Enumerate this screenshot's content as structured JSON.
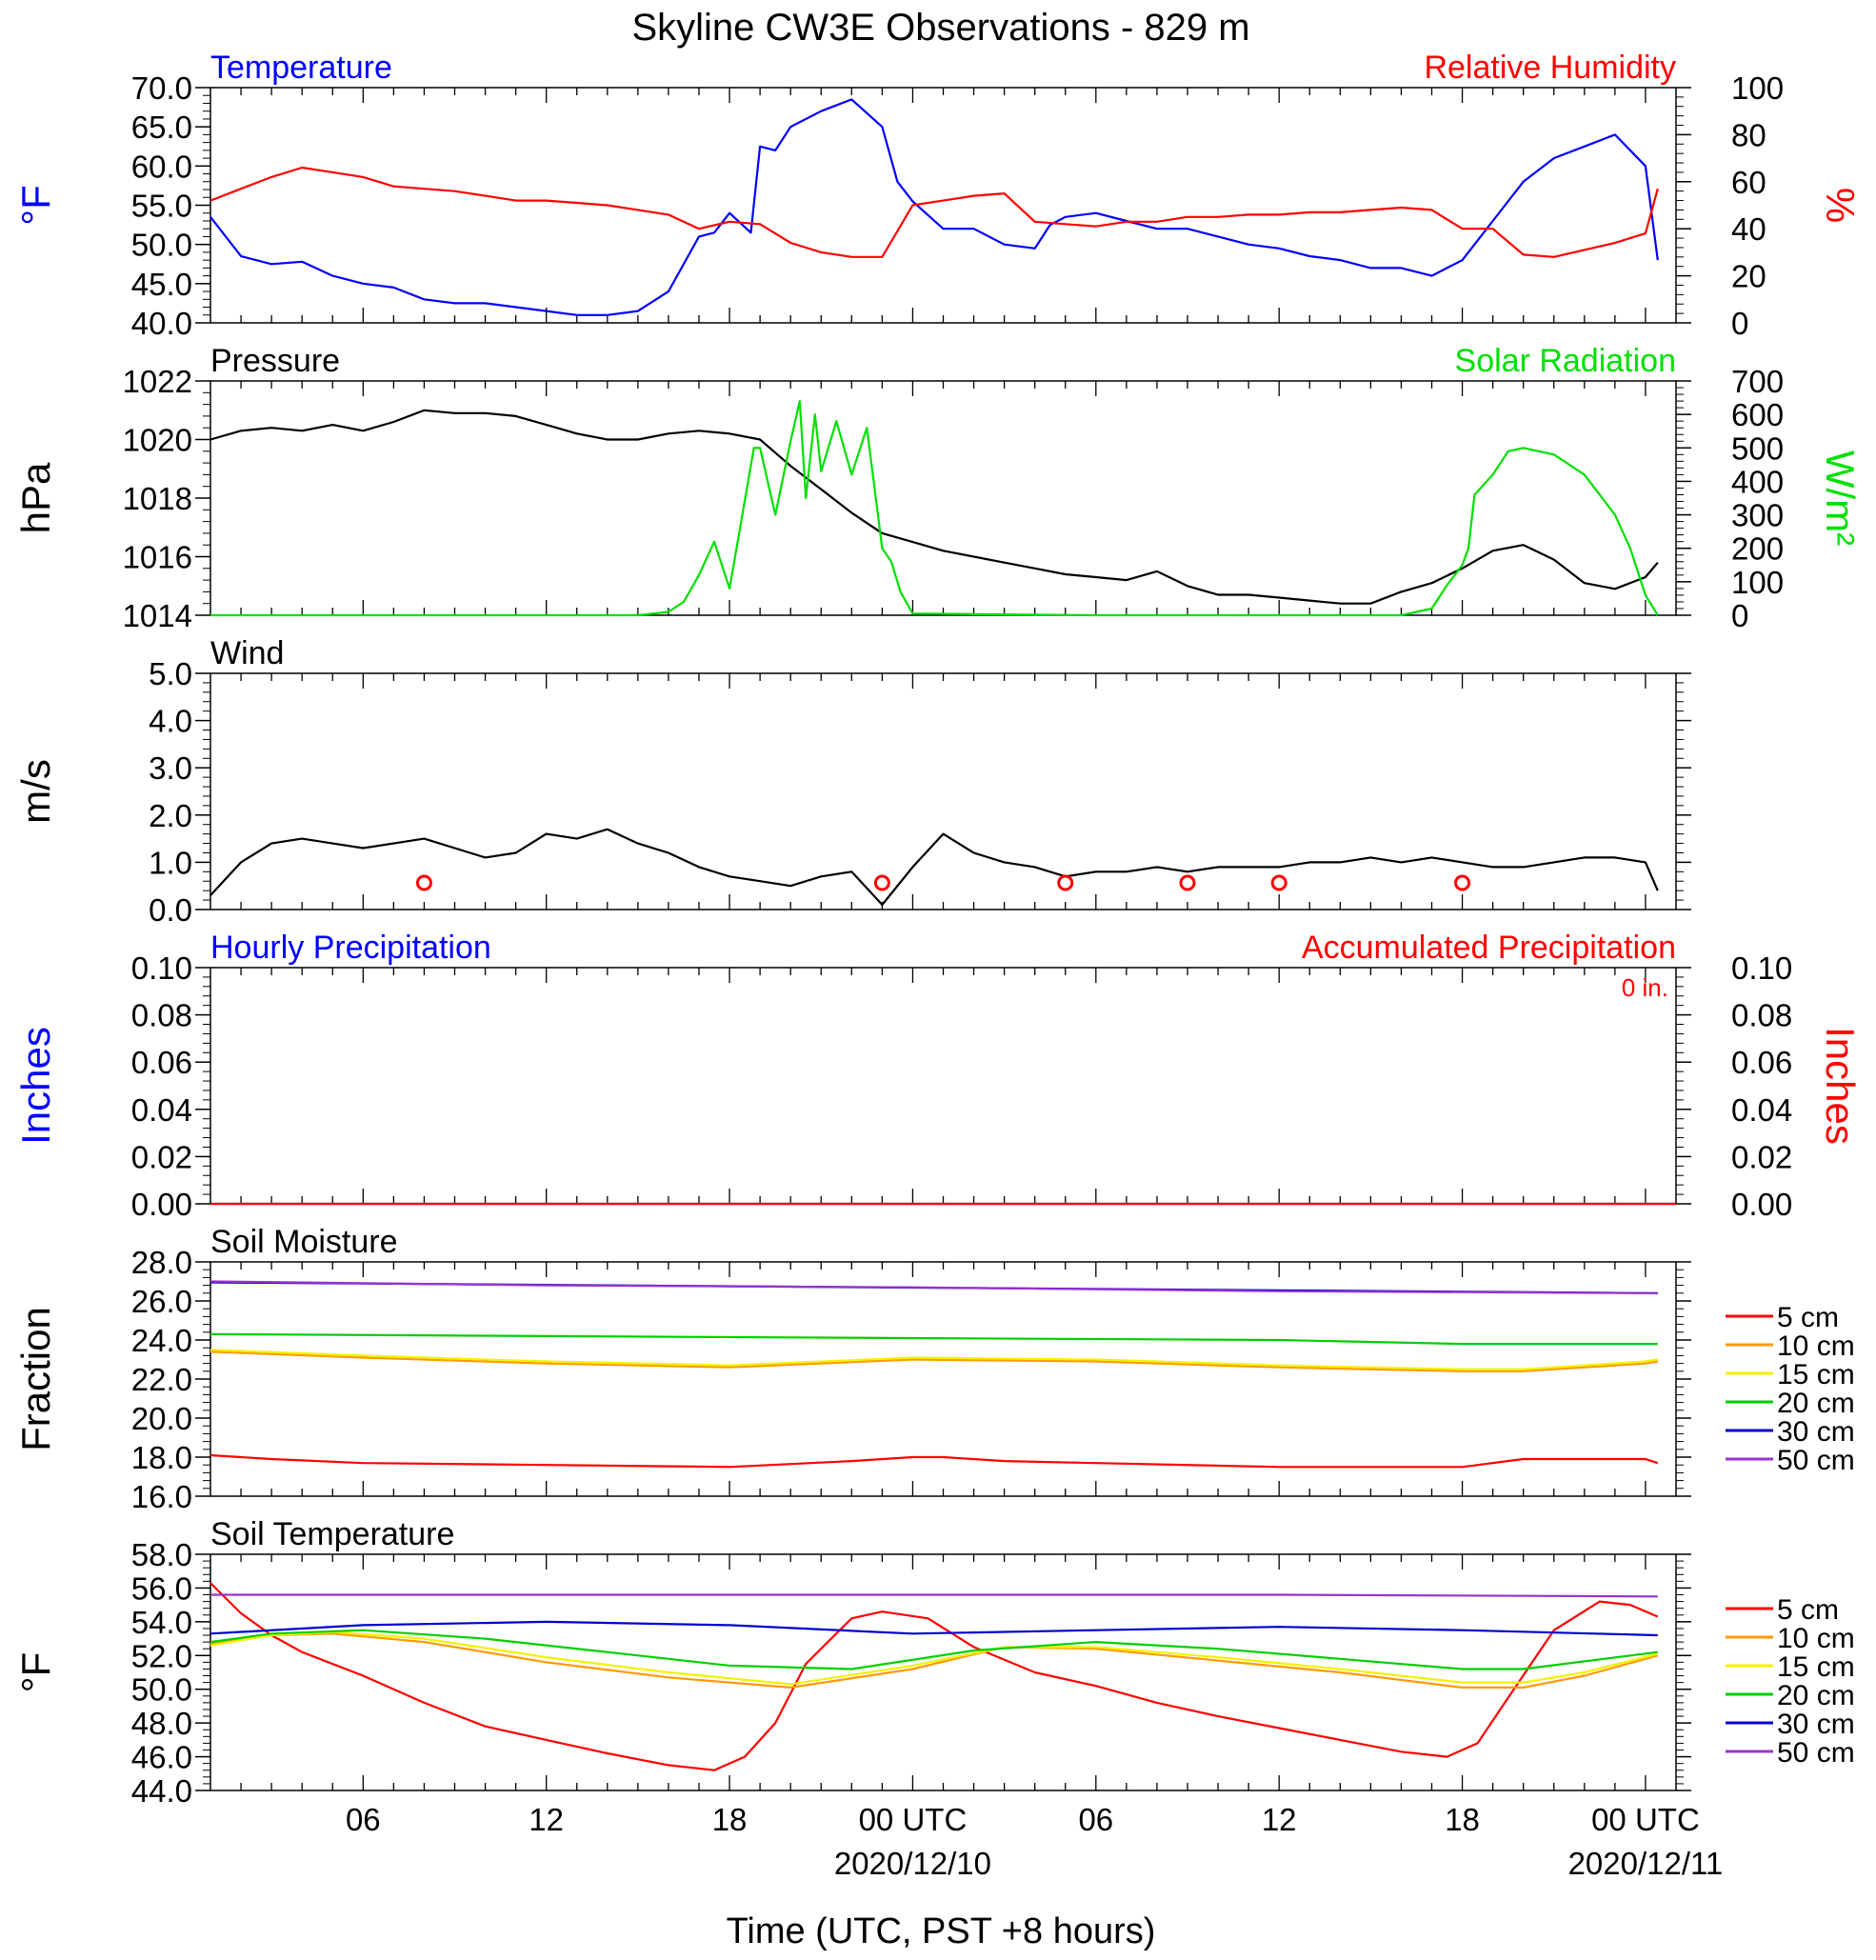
{
  "title": "Skyline CW3E Observations - 829 m",
  "colors": {
    "blue": "#0000ff",
    "red": "#ff0000",
    "green": "#00e000",
    "black": "#000000",
    "orange": "#ff9900",
    "yellow": "#f2f200",
    "soil_green": "#00d000",
    "navy": "#0000cc",
    "purple": "#9933cc"
  },
  "xaxis": {
    "label": "Time (UTC, PST +8 hours)",
    "ticks": [
      {
        "hour": 6,
        "label": "06"
      },
      {
        "hour": 12,
        "label": "12"
      },
      {
        "hour": 18,
        "label": "18"
      },
      {
        "hour": 24,
        "label": "00 UTC",
        "date": "2020/12/10"
      },
      {
        "hour": 30,
        "label": "06"
      },
      {
        "hour": 36,
        "label": "12"
      },
      {
        "hour": 42,
        "label": "18"
      },
      {
        "hour": 48,
        "label": "00 UTC",
        "date": "2020/12/11"
      }
    ],
    "range_hours": [
      1,
      49
    ]
  },
  "chart_data": [
    {
      "type": "line",
      "title_left": "Temperature",
      "title_right": "Relative Humidity",
      "ylabel_left": "°F",
      "ylabel_right": "%",
      "ylim_left": [
        40,
        70
      ],
      "ylim_right": [
        0,
        100
      ],
      "yticks_left": [
        "70.0",
        "65.0",
        "60.0",
        "55.0",
        "50.0",
        "45.0",
        "40.0"
      ],
      "yticks_right": [
        "100",
        "80",
        "60",
        "40",
        "20",
        "0"
      ],
      "series": [
        {
          "name": "Temperature",
          "axis": "left",
          "color": "#0000ff",
          "x": [
            1,
            2,
            3,
            4,
            5,
            6,
            7,
            8,
            9,
            10,
            11,
            12,
            13,
            14,
            15,
            16,
            17,
            17.5,
            18,
            18.7,
            19,
            19.5,
            20,
            21,
            22,
            23,
            23.5,
            24,
            25,
            26,
            27,
            28,
            28.5,
            29,
            30,
            31,
            32,
            33,
            34,
            35,
            36,
            37,
            38,
            39,
            40,
            41,
            42,
            43,
            44,
            45,
            46,
            47,
            48,
            48.4
          ],
          "y": [
            53.5,
            48.5,
            47.5,
            47.8,
            46,
            45,
            44.5,
            43,
            42.5,
            42.5,
            42,
            41.5,
            41,
            41,
            41.5,
            44,
            51,
            51.5,
            54,
            51.5,
            62.5,
            62,
            65,
            67,
            68.5,
            65,
            58,
            55.5,
            52,
            52,
            50,
            49.5,
            52.5,
            53.5,
            54,
            53,
            52,
            52,
            51,
            50,
            49.5,
            48.5,
            48,
            47,
            47,
            46,
            48,
            53,
            58,
            61,
            62.5,
            64,
            60,
            48
          ]
        },
        {
          "name": "Relative Humidity",
          "axis": "right",
          "color": "#ff0000",
          "x": [
            1,
            2,
            3,
            4,
            5,
            6,
            7,
            8,
            9,
            10,
            11,
            12,
            13,
            14,
            15,
            16,
            17,
            18,
            19,
            20,
            21,
            22,
            23,
            24,
            25,
            26,
            27,
            28,
            29,
            30,
            31,
            32,
            33,
            34,
            35,
            36,
            37,
            38,
            39,
            40,
            41,
            42,
            43,
            44,
            45,
            46,
            47,
            48,
            48.4
          ],
          "y": [
            52,
            57,
            62,
            66,
            64,
            62,
            58,
            57,
            56,
            54,
            52,
            52,
            51,
            50,
            48,
            46,
            40,
            43,
            42,
            34,
            30,
            28,
            28,
            50,
            52,
            54,
            55,
            43,
            42,
            41,
            43,
            43,
            45,
            45,
            46,
            46,
            47,
            47,
            48,
            49,
            48,
            40,
            40,
            29,
            28,
            31,
            34,
            38,
            57
          ]
        }
      ]
    },
    {
      "type": "line",
      "title_left": "Pressure",
      "title_right": "Solar Radiation",
      "ylabel_left": "hPa",
      "ylabel_right": "W/m²",
      "ylim_left": [
        1014,
        1022
      ],
      "ylim_right": [
        0,
        700
      ],
      "yticks_left": [
        "1022",
        "1020",
        "1018",
        "1016",
        "1014"
      ],
      "yticks_right": [
        "700",
        "600",
        "500",
        "400",
        "300",
        "200",
        "100",
        "0"
      ],
      "series": [
        {
          "name": "Pressure",
          "axis": "left",
          "color": "#000000",
          "x": [
            1,
            2,
            3,
            4,
            5,
            6,
            7,
            8,
            9,
            10,
            11,
            12,
            13,
            14,
            15,
            16,
            17,
            18,
            19,
            20,
            21,
            22,
            23,
            24,
            25,
            26,
            27,
            28,
            29,
            30,
            31,
            32,
            33,
            34,
            35,
            36,
            37,
            38,
            39,
            40,
            41,
            42,
            43,
            44,
            45,
            46,
            47,
            48,
            48.4
          ],
          "y": [
            1020,
            1020.3,
            1020.4,
            1020.3,
            1020.5,
            1020.3,
            1020.6,
            1021,
            1020.9,
            1020.9,
            1020.8,
            1020.5,
            1020.2,
            1020,
            1020,
            1020.2,
            1020.3,
            1020.2,
            1020,
            1019.1,
            1018.3,
            1017.5,
            1016.8,
            1016.5,
            1016.2,
            1016,
            1015.8,
            1015.6,
            1015.4,
            1015.3,
            1015.2,
            1015.5,
            1015,
            1014.7,
            1014.7,
            1014.6,
            1014.5,
            1014.4,
            1014.4,
            1014.8,
            1015.1,
            1015.6,
            1016.2,
            1016.4,
            1015.9,
            1015.1,
            1014.9,
            1015.3,
            1015.8
          ]
        },
        {
          "name": "Solar Radiation",
          "axis": "right",
          "color": "#00e000",
          "x": [
            1,
            15,
            16,
            16.5,
            17,
            17.5,
            18,
            18.8,
            19,
            19.5,
            20,
            20.3,
            20.5,
            20.8,
            21,
            21.5,
            22,
            22.5,
            23,
            23.3,
            23.6,
            24,
            30,
            40,
            41,
            41.5,
            42,
            42.2,
            42.4,
            43,
            43.5,
            44,
            45,
            46,
            47,
            47.5,
            48,
            48.4
          ],
          "y": [
            0,
            0,
            10,
            40,
            120,
            220,
            80,
            500,
            500,
            300,
            520,
            640,
            350,
            600,
            430,
            580,
            420,
            560,
            200,
            160,
            70,
            5,
            0,
            0,
            20,
            90,
            150,
            200,
            360,
            420,
            490,
            500,
            480,
            420,
            300,
            200,
            60,
            0
          ]
        }
      ]
    },
    {
      "type": "line",
      "title_left": "Wind",
      "ylabel_left": "m/s",
      "ylim_left": [
        0,
        5
      ],
      "yticks_left": [
        "5.0",
        "4.0",
        "3.0",
        "2.0",
        "1.0",
        "0.0"
      ],
      "calm_marker_hours": [
        8,
        23,
        29,
        33,
        36,
        42
      ],
      "series": [
        {
          "name": "Wind",
          "axis": "left",
          "color": "#000000",
          "x": [
            1,
            2,
            3,
            4,
            5,
            6,
            7,
            8,
            9,
            10,
            11,
            12,
            13,
            14,
            15,
            16,
            17,
            18,
            19,
            20,
            21,
            22,
            23,
            24,
            25,
            26,
            27,
            28,
            29,
            30,
            31,
            32,
            33,
            34,
            35,
            36,
            37,
            38,
            39,
            40,
            41,
            42,
            43,
            44,
            45,
            46,
            47,
            48,
            48.4
          ],
          "y": [
            0.3,
            1.0,
            1.4,
            1.5,
            1.4,
            1.3,
            1.4,
            1.5,
            1.3,
            1.1,
            1.2,
            1.6,
            1.5,
            1.7,
            1.4,
            1.2,
            0.9,
            0.7,
            0.6,
            0.5,
            0.7,
            0.8,
            0.1,
            0.9,
            1.6,
            1.2,
            1.0,
            0.9,
            0.7,
            0.8,
            0.8,
            0.9,
            0.8,
            0.9,
            0.9,
            0.9,
            1.0,
            1.0,
            1.1,
            1.0,
            1.1,
            1.0,
            0.9,
            0.9,
            1.0,
            1.1,
            1.1,
            1.0,
            0.4
          ]
        }
      ]
    },
    {
      "type": "line",
      "title_left": "Hourly Precipitation",
      "title_right": "Accumulated Precipitation",
      "annotation": "0 in.",
      "ylabel_left": "Inches",
      "ylabel_right": "Inches",
      "ylim_left": [
        0,
        0.1
      ],
      "ylim_right": [
        0,
        0.1
      ],
      "yticks_left": [
        "0.10",
        "0.08",
        "0.06",
        "0.04",
        "0.02",
        "0.00"
      ],
      "yticks_right": [
        "0.10",
        "0.08",
        "0.06",
        "0.04",
        "0.02",
        "0.00"
      ],
      "series": [
        {
          "name": "Hourly Precipitation",
          "axis": "left",
          "color": "#0000ff",
          "x": [
            1,
            49
          ],
          "y": [
            0,
            0
          ]
        },
        {
          "name": "Accumulated Precipitation",
          "axis": "right",
          "color": "#ff0000",
          "x": [
            1,
            49
          ],
          "y": [
            0,
            0
          ]
        }
      ]
    },
    {
      "type": "line",
      "title_left": "Soil Moisture",
      "ylabel_left": "Fraction",
      "ylim_left": [
        16,
        28
      ],
      "yticks_left": [
        "28.0",
        "26.0",
        "24.0",
        "22.0",
        "20.0",
        "18.0",
        "16.0"
      ],
      "series": [
        {
          "name": "5 cm",
          "color": "#ff0000",
          "x": [
            1,
            3,
            6,
            12,
            18,
            22,
            24,
            25,
            27,
            30,
            36,
            42,
            44,
            48,
            48.4
          ],
          "y": [
            18.1,
            17.9,
            17.7,
            17.6,
            17.5,
            17.8,
            18.0,
            18.0,
            17.8,
            17.7,
            17.5,
            17.5,
            17.9,
            17.9,
            17.7
          ]
        },
        {
          "name": "10 cm",
          "color": "#ff9900",
          "x": [
            1,
            6,
            12,
            18,
            24,
            30,
            36,
            42,
            44,
            48,
            48.4
          ],
          "y": [
            23.4,
            23.1,
            22.8,
            22.6,
            23.0,
            22.9,
            22.6,
            22.4,
            22.4,
            22.8,
            22.9
          ]
        },
        {
          "name": "15 cm",
          "color": "#f2f200",
          "x": [
            1,
            6,
            12,
            18,
            24,
            30,
            36,
            42,
            44,
            48,
            48.4
          ],
          "y": [
            23.5,
            23.2,
            22.9,
            22.7,
            23.1,
            23.0,
            22.7,
            22.5,
            22.5,
            22.9,
            23.0
          ]
        },
        {
          "name": "20 cm",
          "color": "#00d000",
          "x": [
            1,
            12,
            24,
            36,
            42,
            48.4
          ],
          "y": [
            24.3,
            24.2,
            24.1,
            24.0,
            23.8,
            23.8
          ]
        },
        {
          "name": "30 cm",
          "color": "#0000cc",
          "x": [
            1,
            48.4
          ],
          "y": [
            26.95,
            26.4
          ]
        },
        {
          "name": "50 cm",
          "color": "#9933cc",
          "x": [
            1,
            12,
            24,
            36,
            48.4
          ],
          "y": [
            27.0,
            26.8,
            26.7,
            26.5,
            26.4
          ]
        }
      ]
    },
    {
      "type": "line",
      "title_left": "Soil Temperature",
      "ylabel_left": "°F",
      "ylim_left": [
        44,
        58
      ],
      "yticks_left": [
        "58.0",
        "56.0",
        "54.0",
        "52.0",
        "50.0",
        "48.0",
        "46.0",
        "44.0"
      ],
      "series": [
        {
          "name": "5 cm",
          "color": "#ff0000",
          "x": [
            1,
            2,
            3,
            4,
            6,
            8,
            10,
            12,
            14,
            16,
            17.5,
            18.5,
            19.5,
            20.5,
            22,
            23,
            24.5,
            26,
            28,
            30,
            32,
            34,
            36,
            38,
            40,
            41.5,
            42.5,
            43.5,
            45,
            46.5,
            47.5,
            48.4
          ],
          "y": [
            56.3,
            54.5,
            53.2,
            52.2,
            50.8,
            49.2,
            47.8,
            47.0,
            46.2,
            45.5,
            45.2,
            46.0,
            48.0,
            51.5,
            54.2,
            54.6,
            54.2,
            52.5,
            51.0,
            50.2,
            49.2,
            48.4,
            47.7,
            47.0,
            46.3,
            46.0,
            46.8,
            49.5,
            53.5,
            55.2,
            55.0,
            54.3
          ]
        },
        {
          "name": "10 cm",
          "color": "#ff9900",
          "x": [
            1,
            3,
            5,
            8,
            12,
            16,
            20,
            24,
            27,
            30,
            34,
            38,
            42,
            44,
            46,
            48.4
          ],
          "y": [
            52.7,
            53.2,
            53.3,
            52.8,
            51.6,
            50.7,
            50.1,
            51.2,
            52.5,
            52.4,
            51.7,
            51.0,
            50.1,
            50.1,
            50.8,
            52.0
          ]
        },
        {
          "name": "15 cm",
          "color": "#f2f200",
          "x": [
            1,
            3,
            5,
            8,
            12,
            16,
            20,
            24,
            27,
            30,
            34,
            38,
            42,
            44,
            46,
            48.4
          ],
          "y": [
            52.6,
            53.2,
            53.4,
            53.0,
            51.9,
            51.0,
            50.3,
            51.4,
            52.5,
            52.5,
            51.9,
            51.2,
            50.4,
            50.4,
            51.0,
            52.1
          ]
        },
        {
          "name": "20 cm",
          "color": "#00d000",
          "x": [
            1,
            3,
            6,
            10,
            14,
            18,
            22,
            26,
            30,
            34,
            38,
            42,
            44,
            48.4
          ],
          "y": [
            52.8,
            53.3,
            53.5,
            53.0,
            52.2,
            51.4,
            51.2,
            52.3,
            52.8,
            52.4,
            51.8,
            51.2,
            51.2,
            52.2
          ]
        },
        {
          "name": "30 cm",
          "color": "#0000cc",
          "x": [
            1,
            6,
            12,
            18,
            24,
            30,
            36,
            42,
            48.4
          ],
          "y": [
            53.3,
            53.8,
            54.0,
            53.8,
            53.3,
            53.5,
            53.7,
            53.5,
            53.2
          ]
        },
        {
          "name": "50 cm",
          "color": "#9933cc",
          "x": [
            1,
            12,
            24,
            36,
            48.4
          ],
          "y": [
            55.6,
            55.6,
            55.6,
            55.6,
            55.5
          ]
        }
      ]
    }
  ]
}
